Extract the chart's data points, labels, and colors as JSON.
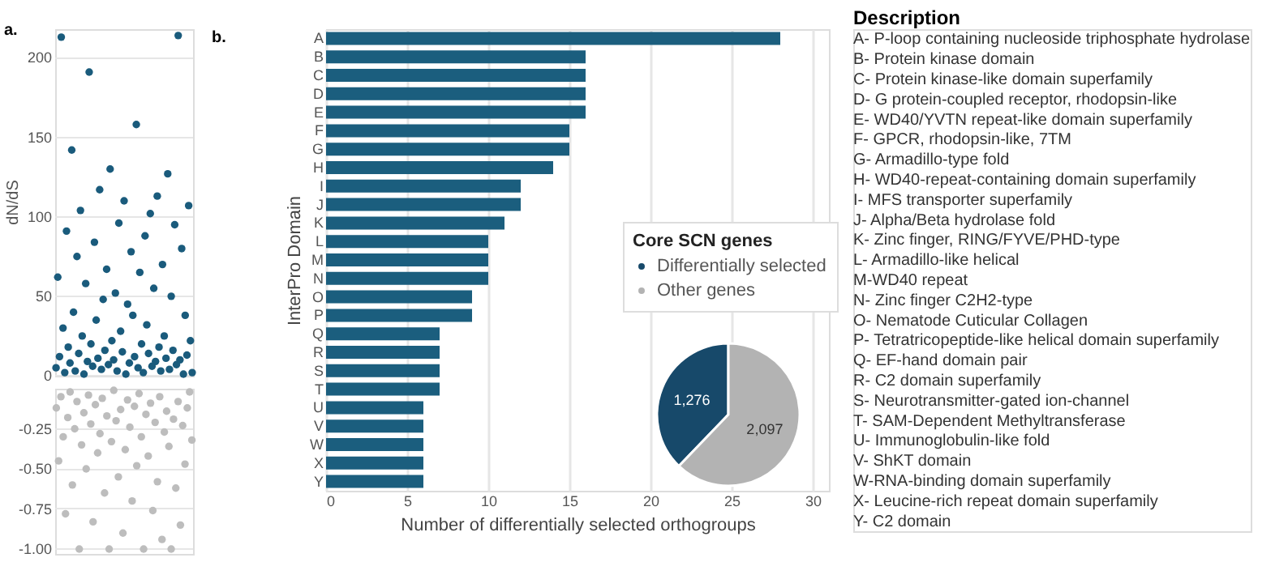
{
  "chart_data": [
    {
      "type": "scatter",
      "title": "a.",
      "ylabel": "dN/dS",
      "categories": [
        null,
        null,
        null,
        null,
        null,
        null,
        null,
        null,
        null,
        null,
        null,
        null,
        null,
        null,
        null,
        null,
        null,
        null,
        null,
        null,
        null,
        null,
        null,
        null,
        null,
        null,
        null,
        null,
        null,
        null,
        null,
        null,
        null,
        null,
        null,
        null,
        null,
        null,
        null,
        null,
        null,
        null,
        null,
        null,
        null,
        null,
        null,
        null,
        null,
        null,
        null,
        null,
        null,
        null,
        null,
        null,
        null,
        null,
        null,
        null,
        null,
        null,
        null,
        null,
        null,
        null,
        null,
        null,
        null,
        null,
        null,
        null,
        null,
        null,
        null,
        null,
        null,
        null,
        null
      ],
      "values": [
        5,
        62,
        12,
        213,
        30,
        2,
        91,
        18,
        8,
        142,
        40,
        3,
        75,
        14,
        104,
        25,
        1,
        58,
        9,
        191,
        20,
        6,
        84,
        35,
        11,
        117,
        4,
        48,
        16,
        67,
        7,
        130,
        22,
        10,
        52,
        3,
        96,
        28,
        15,
        110,
        1,
        45,
        8,
        78,
        38,
        12,
        158,
        5,
        65,
        20,
        2,
        88,
        32,
        14,
        102,
        6,
        55,
        9,
        113,
        18,
        3,
        70,
        25,
        11,
        127,
        4,
        50,
        16,
        95,
        7,
        214,
        10,
        80,
        1,
        38,
        13,
        107,
        22,
        2
      ],
      "color": "#1a5b7c",
      "marker": "circle",
      "ylim": [
        0,
        218
      ],
      "yticks": [
        0,
        50,
        100,
        150,
        200
      ],
      "grid": "y",
      "tick_labels": "y"
    },
    {
      "type": "scatter",
      "categories": [
        null,
        null,
        null,
        null,
        null,
        null,
        null,
        null,
        null,
        null,
        null,
        null,
        null,
        null,
        null,
        null,
        null,
        null,
        null,
        null,
        null,
        null,
        null,
        null,
        null,
        null,
        null,
        null,
        null,
        null,
        null,
        null,
        null,
        null,
        null,
        null,
        null,
        null,
        null,
        null,
        null,
        null,
        null,
        null,
        null,
        null,
        null,
        null,
        null,
        null,
        null,
        null,
        null,
        null,
        null,
        null,
        null,
        null,
        null,
        null
      ],
      "values": [
        -0.12,
        -0.45,
        -0.05,
        -0.3,
        -0.78,
        -0.18,
        -0.02,
        -0.6,
        -0.25,
        -0.08,
        -1,
        -0.35,
        -0.15,
        -0.5,
        -0.04,
        -0.22,
        -0.83,
        -0.1,
        -0.4,
        -0.28,
        -0.06,
        -0.65,
        -0.17,
        -1,
        -0.33,
        -0.01,
        -0.2,
        -0.55,
        -0.13,
        -0.9,
        -0.38,
        -0.07,
        -0.24,
        -0.7,
        -0.11,
        -0.48,
        -0.03,
        -0.3,
        -1,
        -0.16,
        -0.42,
        -0.09,
        -0.76,
        -0.21,
        -0.58,
        -0.05,
        -0.94,
        -0.27,
        -0.14,
        -0.36,
        -1,
        -0.19,
        -0.62,
        -0.08,
        -0.85,
        -0.23,
        -0.47,
        -0.12,
        -0.02,
        -0.32
      ],
      "color": "#bdbdbd",
      "marker": "circle",
      "ylim": [
        -1.03,
        0
      ],
      "yticks": [
        {
          "value": -0.25,
          "label": "-0.25"
        },
        {
          "value": -0.5,
          "label": "-0.50"
        },
        {
          "value": -0.75,
          "label": "-0.75"
        },
        {
          "value": -1,
          "label": "-1.00"
        }
      ],
      "grid": "y",
      "tick_labels": "y"
    },
    {
      "type": "bar",
      "orientation": "horizontal",
      "title": "b.",
      "xlabel": "Number of differentially selected orthogroups",
      "ylabel": "InterPro Domain",
      "categories": [
        "A",
        "B",
        "C",
        "D",
        "E",
        "F",
        "G",
        "H",
        "I",
        "J",
        "K",
        "L",
        "M",
        "N",
        "O",
        "P",
        "Q",
        "R",
        "S",
        "T",
        "U",
        "V",
        "W",
        "X",
        "Y"
      ],
      "values": [
        28,
        16,
        16,
        16,
        16,
        15,
        15,
        14,
        12,
        12,
        11,
        10,
        10,
        10,
        9,
        9,
        7,
        7,
        7,
        7,
        6,
        6,
        6,
        6,
        6
      ],
      "color": "#1b5e7e",
      "xlim": [
        0,
        31
      ],
      "xticks": [
        0,
        5,
        10,
        15,
        20,
        25,
        30
      ],
      "grid": "x"
    },
    {
      "type": "pie",
      "legend_title": "Core SCN genes",
      "categories": [
        "Differentially selected",
        "Other genes"
      ],
      "values": [
        1276,
        2097
      ],
      "colors": [
        "#17496a",
        "#b3b3b3"
      ],
      "value_labels": [
        "1,276",
        "2,097"
      ],
      "legend": "top"
    },
    {
      "type": "other",
      "title": "Description",
      "annotations": [
        "A- P-loop containing nucleoside triphosphate hydrolase",
        "B- Protein kinase domain",
        "C- Protein kinase-like domain superfamily",
        "D- G protein-coupled receptor, rhodopsin-like",
        "E- WD40/YVTN repeat-like domain superfamily",
        "F- GPCR, rhodopsin-like, 7TM",
        "G- Armadillo-type fold",
        "H- WD40-repeat-containing domain superfamily",
        "I-  MFS transporter superfamily",
        "J- Alpha/Beta hydrolase fold",
        "K- Zinc finger, RING/FYVE/PHD-type",
        "L- Armadillo-like helical",
        "M-WD40 repeat",
        "N- Zinc finger C2H2-type",
        "O- Nematode Cuticular Collagen",
        "P- Tetratricopeptide-like helical domain superfamily",
        "Q- EF-hand domain pair",
        "R- C2 domain superfamily",
        "S- Neurotransmitter-gated ion-channel",
        "T- SAM-Dependent Methyltransferase",
        "U- Immunoglobulin-like fold",
        "V- ShKT domain",
        "W-RNA-binding domain superfamily",
        "X- Leucine-rich repeat domain superfamily",
        "Y- C2 domain"
      ]
    }
  ]
}
